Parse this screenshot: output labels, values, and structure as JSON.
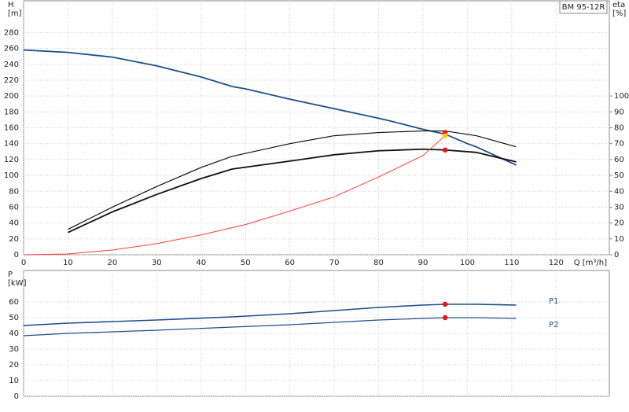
{
  "chart_data": [
    {
      "type": "line",
      "model": "BM 95-12R",
      "ylabel": [
        "H",
        "[m]"
      ],
      "y2label": [
        "eta",
        "[%]"
      ],
      "xlabel": "Q [m³/h]",
      "xlim": [
        0,
        132
      ],
      "xticks": [
        0,
        10,
        20,
        30,
        40,
        50,
        60,
        70,
        80,
        90,
        100,
        110,
        120
      ],
      "show_xtick_labels": true,
      "ylim": [
        0,
        320
      ],
      "yticks": [
        0,
        20,
        40,
        60,
        80,
        100,
        120,
        140,
        160,
        180,
        200,
        220,
        240,
        260,
        280
      ],
      "y2lim": [
        0,
        160
      ],
      "y2ticks": [
        0,
        10,
        20,
        30,
        40,
        50,
        60,
        70,
        80,
        90,
        100
      ],
      "grid": true,
      "series": [
        {
          "color": "#1f4e8c",
          "width": 1.8,
          "x": [
            0,
            10,
            20,
            30,
            40,
            47,
            50,
            60,
            70,
            80,
            83,
            90,
            95,
            100,
            102,
            111
          ],
          "values": [
            258,
            255,
            249,
            238,
            224,
            212,
            209,
            196,
            184,
            172,
            168,
            158,
            152,
            140,
            136,
            113
          ]
        },
        {
          "color": "#111111",
          "width": 1.2,
          "axis": "y2",
          "x": [
            10,
            20,
            30,
            40,
            47,
            60,
            70,
            80,
            90,
            95,
            102,
            111
          ],
          "values": [
            16,
            30,
            43,
            55,
            62,
            70,
            75,
            77,
            78,
            78,
            75,
            68
          ]
        },
        {
          "color": "#111111",
          "width": 1.8,
          "axis": "y2",
          "x": [
            10,
            20,
            30,
            40,
            47,
            60,
            70,
            80,
            90,
            95,
            102,
            111
          ],
          "values": [
            14,
            27,
            38,
            48,
            54,
            59,
            63,
            65.5,
            66.5,
            66,
            64.5,
            58.5
          ]
        },
        {
          "color": "#ff3b3b",
          "width": 1,
          "x": [
            0,
            10,
            20,
            30,
            40,
            50,
            60,
            70,
            80,
            90,
            95
          ],
          "values": [
            0,
            1,
            6,
            14,
            25,
            38,
            55,
            73,
            98,
            125,
            150
          ]
        }
      ],
      "markers": [
        {
          "x": 95,
          "y": 154,
          "color": "#ee1111"
        },
        {
          "x": 95,
          "y": 150,
          "color": "#ffcc00"
        },
        {
          "x": 95,
          "y": 66,
          "axis": "y2",
          "color": "#ee1111"
        }
      ]
    },
    {
      "type": "line",
      "ylabel": [
        "P",
        "[kW]"
      ],
      "xlim": [
        0,
        132
      ],
      "xticks": [
        0,
        10,
        20,
        30,
        40,
        50,
        60,
        70,
        80,
        90,
        100,
        110,
        120
      ],
      "show_xtick_labels": false,
      "ylim": [
        0,
        80
      ],
      "yticks": [
        0,
        10,
        20,
        30,
        40,
        50,
        60
      ],
      "grid": true,
      "series": [
        {
          "name": "P1",
          "color": "#1f4e8c",
          "width": 1.6,
          "x": [
            0,
            10,
            20,
            30,
            47,
            60,
            70,
            80,
            90,
            95,
            102,
            111
          ],
          "values": [
            45,
            46.5,
            47.5,
            48.5,
            50.5,
            52.5,
            54.5,
            56.5,
            58,
            58.5,
            58.5,
            58
          ]
        },
        {
          "name": "P2",
          "color": "#1f4e8c",
          "width": 1.2,
          "x": [
            0,
            10,
            20,
            30,
            47,
            60,
            70,
            80,
            90,
            95,
            102,
            111
          ],
          "values": [
            38.5,
            40,
            41,
            42,
            44,
            45.5,
            47,
            48.5,
            49.5,
            50,
            50,
            49.5
          ]
        }
      ],
      "markers": [
        {
          "x": 95,
          "y": 58.5,
          "color": "#ee1111"
        },
        {
          "x": 95,
          "y": 50,
          "color": "#ee1111"
        }
      ]
    }
  ]
}
